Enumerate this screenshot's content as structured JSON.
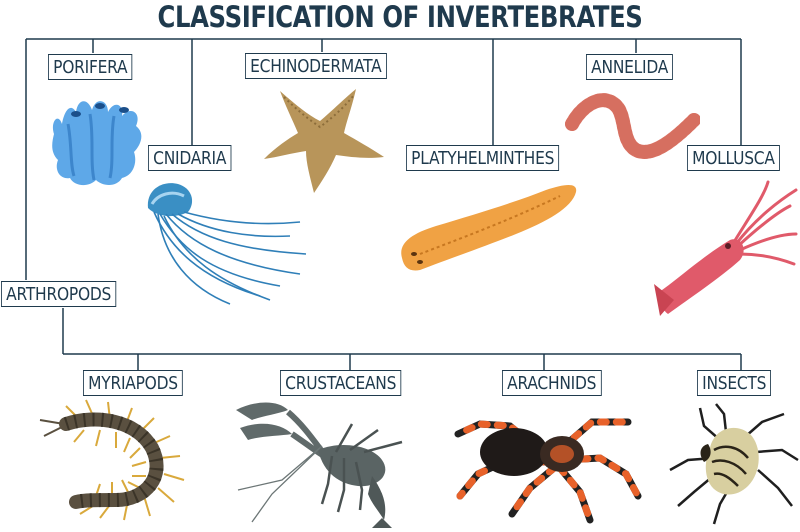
{
  "title": "CLASSIFICATION OF INVERTEBRATES",
  "groups": {
    "porifera": "PORIFERA",
    "cnidaria": "CNIDARIA",
    "echinodermata": "ECHINODERMATA",
    "platyhelminthes": "PLATYHELMINTHES",
    "annelida": "ANNELIDA",
    "mollusca": "MOLLUSCA",
    "arthropods": "ARTHROPODS"
  },
  "arthropod_groups": {
    "myriapods": "MYRIAPODS",
    "crustaceans": "CRUSTACEANS",
    "arachnids": "ARACHNIDS",
    "insects": "INSECTS"
  },
  "colors": {
    "line": "#1f3a4d",
    "sponge": "#5ea8e8",
    "jellyfish": "#3a8fc4",
    "starfish": "#b8955a",
    "flatworm": "#f0a244",
    "worm": "#e8867a",
    "squid": "#e05a6a",
    "centipede": "#5a5040",
    "crayfish": "#606a6a",
    "tarantula": "#e8622a",
    "beetle": "#d8cfa0"
  }
}
